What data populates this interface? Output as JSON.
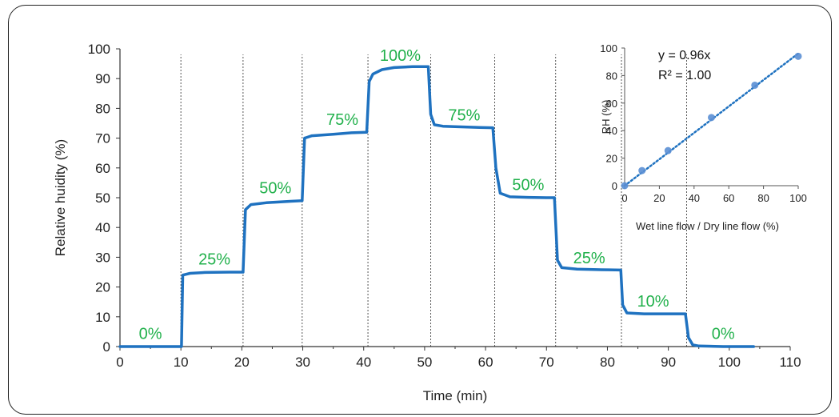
{
  "chart_data": [
    {
      "type": "line",
      "xlabel": "Time (min)",
      "ylabel": "Relative huidity (%)",
      "xlim": [
        0,
        110
      ],
      "ylim": [
        0,
        100
      ],
      "xticks": [
        0,
        10,
        20,
        30,
        40,
        50,
        60,
        70,
        80,
        90,
        100,
        110
      ],
      "yticks": [
        0,
        10,
        20,
        30,
        40,
        50,
        60,
        70,
        80,
        90,
        100
      ],
      "grid": false,
      "colors": {
        "line": "#1f72c0",
        "labels": "#22b14c",
        "dividers": "#555555"
      },
      "series": [
        {
          "x": [
            0,
            10.1,
            10.3,
            11.5,
            14,
            18,
            20.2,
            20.6,
            21.5,
            24,
            28,
            29.9,
            30.3,
            31.5,
            35,
            38,
            40.5,
            40.9,
            41.5,
            43,
            45,
            48,
            50.6,
            51,
            51.6,
            53,
            56,
            59,
            61.2,
            61.7,
            62.4,
            64,
            67,
            70,
            71.3,
            71.8,
            72.5,
            75,
            79,
            82.2,
            82.5,
            83.2,
            86,
            90,
            92.8,
            93.3,
            94,
            95,
            99,
            104
          ],
          "y": [
            0,
            0,
            24,
            24.6,
            24.9,
            25,
            25,
            46,
            47.7,
            48.3,
            48.8,
            49,
            70,
            70.8,
            71.3,
            71.8,
            72,
            89,
            91.5,
            93,
            93.7,
            94,
            94,
            78,
            74.5,
            74,
            73.8,
            73.6,
            73.5,
            60,
            51.5,
            50.3,
            50.1,
            50,
            50,
            29,
            26.5,
            26,
            25.8,
            25.7,
            14,
            11.3,
            11,
            11,
            11,
            3,
            0.6,
            0.2,
            0,
            0
          ]
        }
      ],
      "step_labels": [
        {
          "text": "0%",
          "x": 5,
          "y": 2.5
        },
        {
          "text": "25%",
          "x": 15.5,
          "y": 27.5
        },
        {
          "text": "50%",
          "x": 25.5,
          "y": 51.5
        },
        {
          "text": "75%",
          "x": 36.5,
          "y": 74.5
        },
        {
          "text": "100%",
          "x": 46,
          "y": 96
        },
        {
          "text": "75%",
          "x": 56.5,
          "y": 76
        },
        {
          "text": "50%",
          "x": 67,
          "y": 52.5
        },
        {
          "text": "25%",
          "x": 77,
          "y": 28
        },
        {
          "text": "10%",
          "x": 87.5,
          "y": 13.5
        },
        {
          "text": "0%",
          "x": 99,
          "y": 2.5
        }
      ],
      "dividers_x": [
        10,
        20.2,
        29.9,
        40.7,
        51,
        61.5,
        71.5,
        82.3,
        93
      ]
    },
    {
      "type": "scatter",
      "xlabel": "Wet line flow / Dry line flow (%)",
      "ylabel": "RH (%)",
      "xlim": [
        0,
        100
      ],
      "ylim": [
        0,
        100
      ],
      "xticks": [
        0,
        20,
        40,
        60,
        80,
        100
      ],
      "yticks": [
        0,
        20,
        40,
        60,
        80,
        100
      ],
      "grid": false,
      "legend": "none",
      "colors": {
        "points": "#5b8fd4",
        "trendline": "#1f72c0"
      },
      "series": [
        {
          "x": [
            0,
            10,
            25,
            50,
            75,
            100
          ],
          "y": [
            0,
            11,
            25.5,
            49.5,
            73,
            94
          ]
        }
      ],
      "trendline": {
        "slope": 0.96
      },
      "annotations": [
        "y = 0.96x",
        "R² = 1.00"
      ]
    }
  ]
}
